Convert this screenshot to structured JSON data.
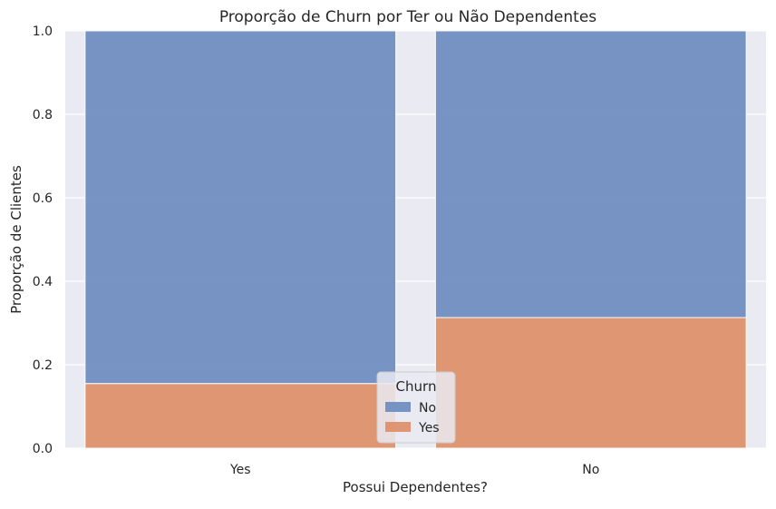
{
  "chart_data": {
    "type": "bar",
    "stacked": true,
    "normalized": true,
    "title": "Proporção de Churn por Ter ou Não Dependentes",
    "xlabel": "Possui Dependentes?",
    "ylabel": "Proporção de Clientes",
    "categories": [
      "Yes",
      "No"
    ],
    "ylim": [
      0,
      1
    ],
    "yticks": [
      "0.0",
      "0.2",
      "0.4",
      "0.6",
      "0.8",
      "1.0"
    ],
    "grid": true,
    "legend": {
      "title": "Churn",
      "placement": "bottom-center"
    },
    "series": [
      {
        "name": "No",
        "values": [
          0.845,
          0.687
        ],
        "color": "#6b8bc0"
      },
      {
        "name": "Yes",
        "values": [
          0.155,
          0.313
        ],
        "color": "#dd8e68"
      }
    ]
  }
}
